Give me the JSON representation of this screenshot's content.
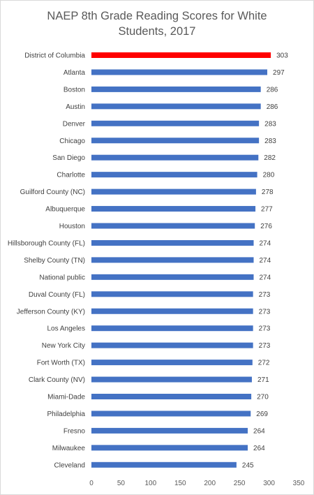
{
  "chart_data": {
    "type": "bar",
    "orientation": "horizontal",
    "title": "NAEP 8th Grade Reading Scores for White\nStudents, 2017",
    "categories": [
      "District of Columbia",
      "Atlanta",
      "Boston",
      "Austin",
      "Denver",
      "Chicago",
      "San Diego",
      "Charlotte",
      "Guilford County (NC)",
      "Albuquerque",
      "Houston",
      "Hillsborough County (FL)",
      "Shelby County (TN)",
      "National public",
      "Duval County (FL)",
      "Jefferson County (KY)",
      "Los Angeles",
      "New York City",
      "Fort Worth (TX)",
      "Clark County (NV)",
      "Miami-Dade",
      "Philadelphia",
      "Fresno",
      "Milwaukee",
      "Cleveland"
    ],
    "values": [
      303,
      297,
      286,
      286,
      283,
      283,
      282,
      280,
      278,
      277,
      276,
      274,
      274,
      274,
      273,
      273,
      273,
      273,
      272,
      271,
      270,
      269,
      264,
      264,
      245
    ],
    "xlim": [
      0,
      350
    ],
    "xticks": [
      0,
      50,
      100,
      150,
      200,
      250,
      300,
      350
    ],
    "xlabel": "",
    "ylabel": "",
    "data_labels": true,
    "grid": false,
    "legend": "none",
    "colors": {
      "default_bar": "#4472c4",
      "highlight_bar": "#ff0000",
      "highlight_category": "District of Columbia"
    }
  }
}
